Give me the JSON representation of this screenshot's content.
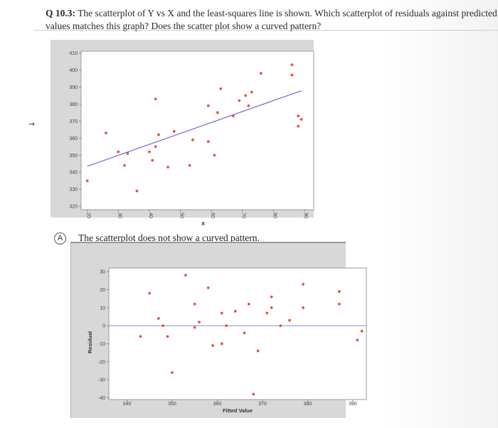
{
  "question": {
    "number": "Q 10.3:",
    "text": "The scatterplot of Y vs X and the least-squares line is shown. Which scatterplot of residuals against predicted values matches this graph? Does the scatter plot show a curved pattern?"
  },
  "marker": "→",
  "colors": {
    "point": "#e8504a",
    "line": "#6a6ad8",
    "grid": "#888888"
  },
  "option": {
    "letter": "A",
    "text": "The scatterplot does not show a curved pattern."
  },
  "chart_data": [
    {
      "type": "scatter",
      "title": "",
      "xlabel": "X",
      "ylabel": "",
      "xlim": [
        18,
        93
      ],
      "ylim": [
        318,
        411
      ],
      "x_ticks": [
        20,
        30,
        40,
        50,
        60,
        70,
        80,
        90
      ],
      "y_ticks": [
        320,
        330,
        340,
        350,
        360,
        370,
        380,
        390,
        400,
        410
      ],
      "x_tick_labels": [
        "20",
        "30",
        "40",
        "50",
        "60",
        "70",
        "80",
        "90"
      ],
      "y_tick_labels": [
        "320",
        "330",
        "340",
        "350",
        "360",
        "370",
        "380",
        "390",
        "400",
        "410"
      ],
      "regression_line": {
        "x": [
          20,
          89
        ],
        "y": [
          343.5,
          387.8
        ]
      },
      "points": [
        {
          "x": 20,
          "y": 335
        },
        {
          "x": 26,
          "y": 363
        },
        {
          "x": 30,
          "y": 352
        },
        {
          "x": 32,
          "y": 344
        },
        {
          "x": 33,
          "y": 351
        },
        {
          "x": 36,
          "y": 329
        },
        {
          "x": 40,
          "y": 352
        },
        {
          "x": 41,
          "y": 347
        },
        {
          "x": 42,
          "y": 383
        },
        {
          "x": 42,
          "y": 355
        },
        {
          "x": 43,
          "y": 362
        },
        {
          "x": 46,
          "y": 343
        },
        {
          "x": 48,
          "y": 364
        },
        {
          "x": 53,
          "y": 344
        },
        {
          "x": 54,
          "y": 359
        },
        {
          "x": 59,
          "y": 379
        },
        {
          "x": 59,
          "y": 358
        },
        {
          "x": 61,
          "y": 350
        },
        {
          "x": 62,
          "y": 375
        },
        {
          "x": 63,
          "y": 389
        },
        {
          "x": 67,
          "y": 373
        },
        {
          "x": 69,
          "y": 382
        },
        {
          "x": 71,
          "y": 385
        },
        {
          "x": 72,
          "y": 379
        },
        {
          "x": 73,
          "y": 387
        },
        {
          "x": 76,
          "y": 398
        },
        {
          "x": 86,
          "y": 403
        },
        {
          "x": 86,
          "y": 397
        },
        {
          "x": 88,
          "y": 373
        },
        {
          "x": 88,
          "y": 367
        },
        {
          "x": 89,
          "y": 371
        }
      ]
    },
    {
      "type": "scatter",
      "title": "",
      "xlabel": "Fitted Value",
      "ylabel": "Residual",
      "xlim": [
        336,
        393
      ],
      "ylim": [
        -41,
        32
      ],
      "x_ticks": [
        340,
        350,
        360,
        370,
        380,
        390
      ],
      "y_ticks": [
        -40,
        -30,
        -20,
        -10,
        0,
        10,
        20,
        30
      ],
      "x_tick_labels": [
        "340",
        "350",
        "360",
        "370",
        "380",
        "390"
      ],
      "y_tick_labels": [
        "-40",
        "-30",
        "-20",
        "-10",
        "0",
        "10",
        "20",
        "30"
      ],
      "reference_line_y": 0,
      "points": [
        {
          "x": 343,
          "y": -6
        },
        {
          "x": 345,
          "y": 18
        },
        {
          "x": 347,
          "y": 4
        },
        {
          "x": 348,
          "y": 0
        },
        {
          "x": 349,
          "y": -6
        },
        {
          "x": 350,
          "y": -26
        },
        {
          "x": 353,
          "y": 28
        },
        {
          "x": 355,
          "y": -1
        },
        {
          "x": 356,
          "y": 2
        },
        {
          "x": 355,
          "y": 12
        },
        {
          "x": 358,
          "y": 21
        },
        {
          "x": 359,
          "y": -11
        },
        {
          "x": 361,
          "y": 7
        },
        {
          "x": 361,
          "y": -10
        },
        {
          "x": 362,
          "y": 0
        },
        {
          "x": 364,
          "y": 8
        },
        {
          "x": 366,
          "y": -4
        },
        {
          "x": 367,
          "y": 12
        },
        {
          "x": 368,
          "y": -38
        },
        {
          "x": 369,
          "y": -14
        },
        {
          "x": 371,
          "y": 7
        },
        {
          "x": 372,
          "y": 16
        },
        {
          "x": 372,
          "y": 10
        },
        {
          "x": 374,
          "y": 0
        },
        {
          "x": 376,
          "y": 3
        },
        {
          "x": 379,
          "y": 10
        },
        {
          "x": 379,
          "y": 23
        },
        {
          "x": 387,
          "y": 19
        },
        {
          "x": 387,
          "y": 12
        },
        {
          "x": 391,
          "y": -8
        },
        {
          "x": 392,
          "y": -3
        }
      ]
    }
  ]
}
